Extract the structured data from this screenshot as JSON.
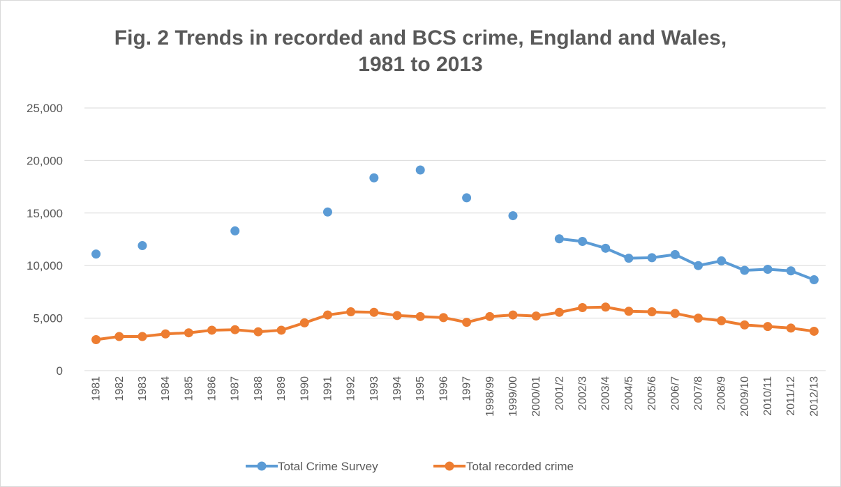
{
  "chart_data": {
    "type": "line",
    "title_line1": "Fig. 2 Trends in recorded and BCS crime, England and Wales,",
    "title_line2": "1981 to 2013",
    "ylim": [
      0,
      25000
    ],
    "yticks": [
      "0",
      "5,000",
      "10,000",
      "15,000",
      "20,000",
      "25,000"
    ],
    "ytick_values": [
      0,
      5000,
      10000,
      15000,
      20000,
      25000
    ],
    "grid": true,
    "legend_position": "bottom",
    "categories": [
      "1981",
      "1982",
      "1983",
      "1984",
      "1985",
      "1986",
      "1987",
      "1988",
      "1989",
      "1990",
      "1991",
      "1992",
      "1993",
      "1994",
      "1995",
      "1996",
      "1997",
      "1998/99",
      "1999/00",
      "2000/01",
      "2001/2",
      "2002/3",
      "2003/4",
      "2004/5",
      "2005/6",
      "2006/7",
      "2007/8",
      "2008/9",
      "2009/10",
      "2010/11",
      "2011/12",
      "2012/13"
    ],
    "series": [
      {
        "name": "Total Crime Survey",
        "color": "#5b9bd5",
        "values": [
          11100,
          null,
          11900,
          null,
          null,
          null,
          13300,
          null,
          null,
          null,
          15100,
          null,
          18350,
          null,
          19100,
          null,
          16450,
          null,
          14750,
          null,
          12550,
          12300,
          11650,
          10700,
          10750,
          11050,
          10000,
          10450,
          9550,
          9650,
          9500,
          8650
        ]
      },
      {
        "name": "Total recorded crime",
        "color": "#ed7d31",
        "values": [
          2950,
          3250,
          3250,
          3500,
          3600,
          3850,
          3900,
          3700,
          3850,
          4550,
          5300,
          5600,
          5550,
          5250,
          5150,
          5050,
          4600,
          5150,
          5300,
          5200,
          5550,
          6000,
          6050,
          5650,
          5600,
          5450,
          5000,
          4750,
          4350,
          4200,
          4050,
          3750
        ]
      }
    ]
  }
}
